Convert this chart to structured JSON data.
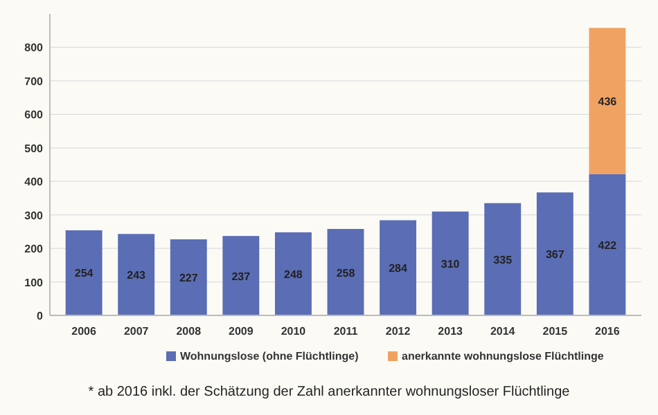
{
  "chart_data": {
    "type": "bar",
    "stacked": true,
    "categories": [
      "2006",
      "2007",
      "2008",
      "2009",
      "2010",
      "2011",
      "2012",
      "2013",
      "2014",
      "2015",
      "2016"
    ],
    "series": [
      {
        "name": "Wohnungslose (ohne Flüchtlinge)",
        "color": "#5b6db4",
        "values": [
          254,
          243,
          227,
          237,
          248,
          258,
          284,
          310,
          335,
          367,
          422
        ]
      },
      {
        "name": "anerkannte wohnungslose Flüchtlinge",
        "color": "#f0a263",
        "values": [
          null,
          null,
          null,
          null,
          null,
          null,
          null,
          null,
          null,
          null,
          436
        ]
      }
    ],
    "ylim": [
      0,
      900
    ],
    "yticks": [
      0,
      100,
      200,
      300,
      400,
      500,
      600,
      700,
      800
    ],
    "grid": "y",
    "legend": "bottom",
    "data_labels": true,
    "annotations": [
      "* ab 2016 inkl. der Schätzung der Zahl anerkannter wohnungsloser Flüchtlinge"
    ]
  }
}
